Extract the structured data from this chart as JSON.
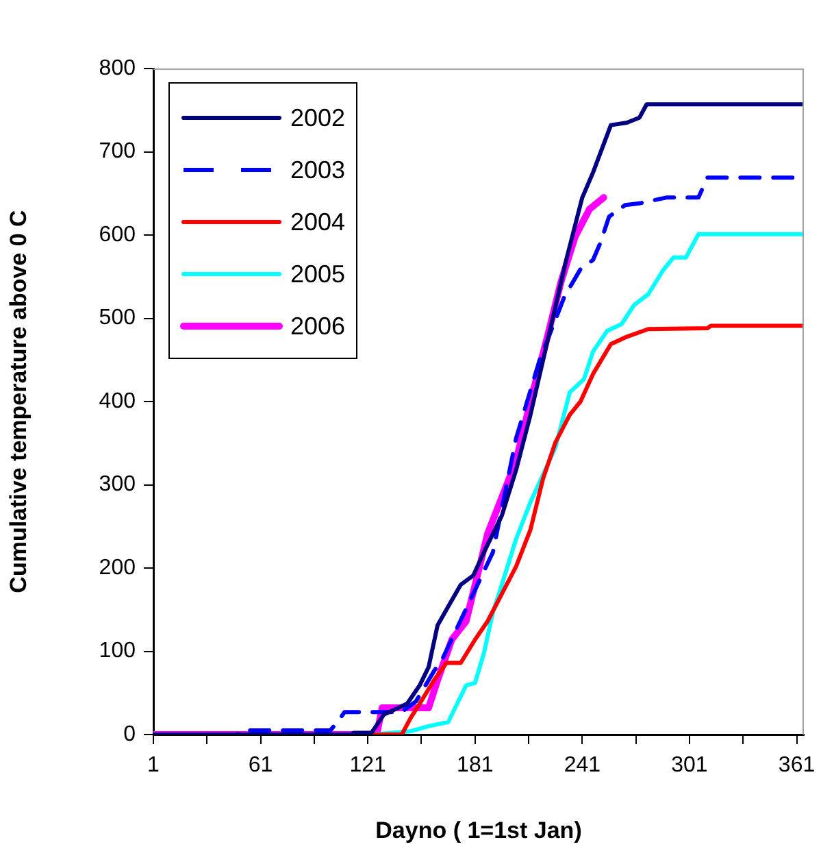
{
  "chart_data": {
    "type": "line",
    "xlabel": "Dayno ( 1=1st Jan)",
    "ylabel": "Cumulative temperature above 0 C",
    "xlim": [
      1,
      365
    ],
    "xticks": [
      1,
      {
        "value": 31,
        "label": null
      },
      61,
      {
        "value": 91,
        "label": null
      },
      121,
      {
        "value": 151,
        "label": null
      },
      181,
      {
        "value": 211,
        "label": null
      },
      241,
      {
        "value": 271,
        "label": null
      },
      301,
      {
        "value": 331,
        "label": null
      },
      361
    ],
    "ylim": [
      0,
      800
    ],
    "yticks": [
      0,
      100,
      200,
      300,
      400,
      500,
      600,
      700,
      800
    ],
    "grid": false,
    "legend": "top left",
    "marker": "none",
    "series": [
      {
        "name": "2002",
        "color": "#000080",
        "line_style": "solid",
        "x": [
          1,
          112,
          113,
          123,
          130,
          143,
          150,
          155,
          160,
          165,
          173,
          180,
          186,
          196,
          204,
          212,
          222,
          232,
          241,
          247,
          257,
          266,
          273,
          277,
          365
        ],
        "values": [
          0,
          0,
          2,
          2,
          24,
          37,
          59,
          81,
          131,
          150,
          180,
          191,
          219,
          263,
          318,
          384,
          477,
          570,
          645,
          675,
          732,
          735,
          741,
          757,
          757
        ]
      },
      {
        "name": "2003",
        "color": "#0000ff",
        "line_style": "dashed",
        "x": [
          1,
          48,
          50,
          100,
          104,
          108,
          140,
          148,
          158,
          163,
          191,
          204,
          217,
          231,
          240,
          247,
          251,
          256,
          265,
          273,
          288,
          306,
          311,
          365
        ],
        "values": [
          0,
          0,
          5,
          5,
          15,
          27,
          27,
          40,
          76,
          92,
          219,
          356,
          449,
          526,
          559,
          570,
          590,
          622,
          636,
          638,
          645,
          645,
          669,
          669
        ]
      },
      {
        "name": "2004",
        "color": "#ff0000",
        "line_style": "solid",
        "x": [
          1,
          140,
          145,
          150,
          158,
          165,
          173,
          181,
          188,
          196,
          204,
          212,
          219,
          226,
          234,
          240,
          247,
          257,
          265,
          278,
          311,
          313,
          365
        ],
        "values": [
          0,
          0,
          20,
          37,
          65,
          86,
          86,
          114,
          136,
          169,
          202,
          246,
          307,
          351,
          384,
          400,
          433,
          469,
          477,
          487,
          488,
          491,
          491
        ]
      },
      {
        "name": "2005",
        "color": "#00ffff",
        "line_style": "solid",
        "x": [
          1,
          123,
          145,
          155,
          166,
          171,
          176,
          181,
          186,
          191,
          196,
          204,
          212,
          219,
          226,
          234,
          242,
          247,
          255,
          263,
          270,
          278,
          286,
          292,
          299,
          306,
          365
        ],
        "values": [
          0,
          0,
          4,
          10,
          15,
          37,
          59,
          62,
          98,
          147,
          180,
          235,
          279,
          312,
          345,
          411,
          427,
          460,
          485,
          493,
          516,
          529,
          557,
          573,
          573,
          601,
          601
        ]
      },
      {
        "name": "2006",
        "color": "#ff00ff",
        "line_style": "solid",
        "x": [
          1,
          126,
          129,
          155,
          160,
          168,
          176,
          183,
          188,
          196,
          204,
          212,
          222,
          229,
          237,
          245,
          253
        ],
        "values": [
          0,
          0,
          32,
          32,
          65,
          114,
          136,
          197,
          241,
          285,
          329,
          400,
          482,
          543,
          598,
          631,
          645
        ]
      }
    ]
  }
}
